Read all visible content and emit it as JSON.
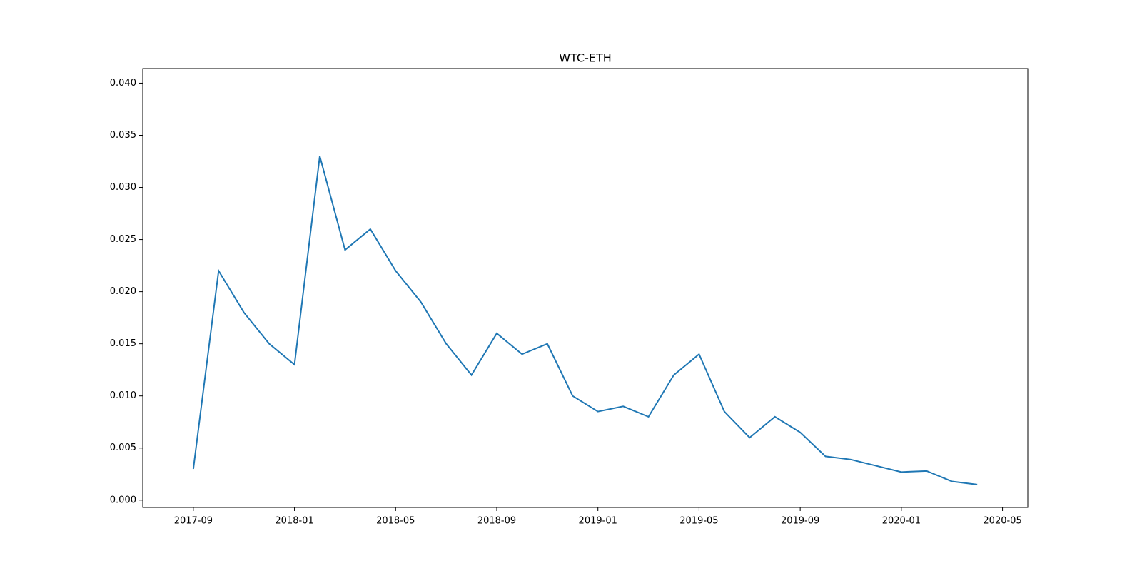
{
  "chart_data": {
    "type": "line",
    "title": "WTC-ETH",
    "x": [
      "2017-09",
      "2017-10",
      "2017-11",
      "2017-12",
      "2018-01",
      "2018-02",
      "2018-03",
      "2018-04",
      "2018-05",
      "2018-06",
      "2018-07",
      "2018-08",
      "2018-09",
      "2018-10",
      "2018-11",
      "2018-12",
      "2019-01",
      "2019-02",
      "2019-03",
      "2019-04",
      "2019-05",
      "2019-06",
      "2019-07",
      "2019-08",
      "2019-09",
      "2019-10",
      "2019-11",
      "2019-12",
      "2020-01",
      "2020-02",
      "2020-03",
      "2020-04"
    ],
    "series": [
      {
        "name": "WTC-ETH",
        "color": "#1f77b4",
        "values": [
          0.003,
          0.022,
          0.018,
          0.015,
          0.013,
          0.033,
          0.024,
          0.026,
          0.022,
          0.019,
          0.015,
          0.012,
          0.016,
          0.014,
          0.015,
          0.01,
          0.0085,
          0.009,
          0.008,
          0.012,
          0.014,
          0.0085,
          0.006,
          0.008,
          0.0065,
          0.0042,
          0.0039,
          0.0033,
          0.0027,
          0.0028,
          0.0018,
          0.0015
        ]
      }
    ],
    "xlim": [
      "2017-07",
      "2020-06"
    ],
    "xticks": [
      "2017-09",
      "2018-01",
      "2018-05",
      "2018-09",
      "2019-01",
      "2019-05",
      "2019-09",
      "2020-01",
      "2020-05"
    ],
    "ylim": [
      -0.0007,
      0.0414
    ],
    "yticks": [
      {
        "value": 0,
        "label": "0.000"
      },
      {
        "value": 0.005,
        "label": "0.005"
      },
      {
        "value": 0.01,
        "label": "0.010"
      },
      {
        "value": 0.015,
        "label": "0.015"
      },
      {
        "value": 0.02,
        "label": "0.020"
      },
      {
        "value": 0.025,
        "label": "0.025"
      },
      {
        "value": 0.03,
        "label": "0.030"
      },
      {
        "value": 0.035,
        "label": "0.035"
      },
      {
        "value": 0.04,
        "label": "0.040"
      }
    ],
    "grid": false
  }
}
